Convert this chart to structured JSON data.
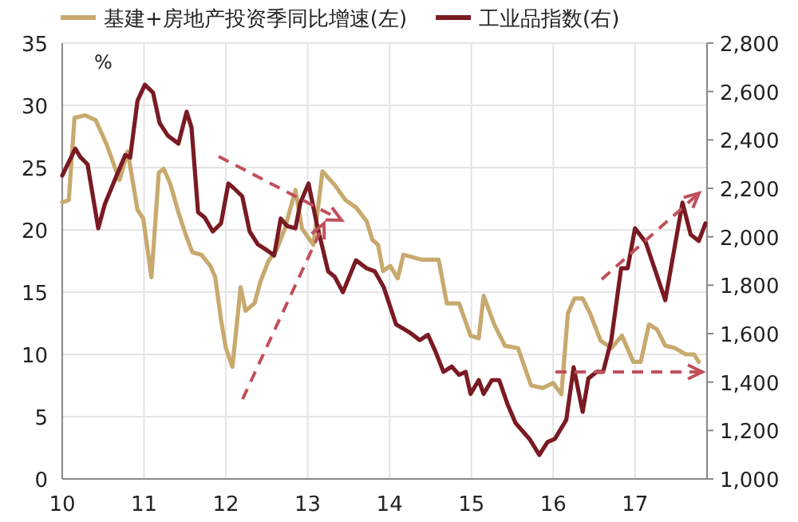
{
  "chart_data": {
    "type": "line",
    "grid": true,
    "legend": "top",
    "line_style": "solid",
    "annotations": [
      "%"
    ],
    "xlim": [
      10,
      17.88
    ],
    "xticks": [
      10,
      11,
      12,
      13,
      14,
      15,
      16,
      17
    ],
    "ylim": [
      0,
      35
    ],
    "yticks": [
      0,
      5,
      10,
      15,
      20,
      25,
      30,
      35
    ],
    "y2lim": [
      1000,
      2800
    ],
    "y2ticks": [
      {
        "value": 1000,
        "label": "1,000"
      },
      {
        "value": 1200,
        "label": "1,200"
      },
      {
        "value": 1400,
        "label": "1,400"
      },
      {
        "value": 1600,
        "label": "1,600"
      },
      {
        "value": 1800,
        "label": "1,800"
      },
      {
        "value": 2000,
        "label": "2,000"
      },
      {
        "value": 2200,
        "label": "2,200"
      },
      {
        "value": 2400,
        "label": "2,400"
      },
      {
        "value": 2600,
        "label": "2,600"
      },
      {
        "value": 2800,
        "label": "2,800"
      }
    ],
    "series": [
      {
        "name": "基建+房地产投资季同比增速(左)",
        "color": "#c8a96e",
        "axis": "y",
        "x": [
          10.0,
          10.08,
          10.15,
          10.28,
          10.41,
          10.54,
          10.7,
          10.8,
          10.92,
          10.99,
          11.09,
          11.18,
          11.24,
          11.32,
          11.42,
          11.51,
          11.59,
          11.7,
          11.81,
          11.87,
          11.94,
          12.0,
          12.08,
          12.18,
          12.24,
          12.35,
          12.42,
          12.52,
          12.62,
          12.72,
          12.85,
          12.93,
          13.07,
          13.18,
          13.33,
          13.46,
          13.59,
          13.72,
          13.79,
          13.86,
          13.92,
          14.01,
          14.1,
          14.17,
          14.4,
          14.6,
          14.7,
          14.85,
          14.99,
          15.09,
          15.15,
          15.28,
          15.41,
          15.57,
          15.73,
          15.87,
          16.0,
          16.1,
          16.18,
          16.26,
          16.36,
          16.45,
          16.58,
          16.71,
          16.84,
          16.98,
          17.07,
          17.17,
          17.27,
          17.37,
          17.49,
          17.62,
          17.72,
          17.78
        ],
        "values": [
          22.2,
          22.4,
          29.0,
          29.2,
          28.8,
          26.9,
          24.0,
          26.3,
          21.6,
          20.9,
          16.2,
          24.6,
          24.9,
          23.7,
          21.4,
          19.6,
          18.2,
          18.0,
          17.1,
          16.2,
          12.8,
          10.5,
          9.0,
          15.4,
          13.5,
          14.1,
          15.8,
          17.5,
          18.4,
          20.1,
          23.2,
          20.1,
          18.8,
          24.7,
          23.6,
          22.4,
          21.8,
          20.7,
          19.2,
          18.8,
          16.7,
          17.1,
          16.1,
          18.0,
          17.6,
          17.6,
          14.1,
          14.1,
          11.5,
          11.3,
          14.7,
          12.4,
          10.7,
          10.5,
          7.5,
          7.3,
          7.7,
          6.8,
          13.3,
          14.5,
          14.5,
          13.3,
          11.1,
          10.5,
          11.5,
          9.4,
          9.4,
          12.4,
          12.0,
          10.7,
          10.5,
          10.0,
          10.0,
          9.4
        ]
      },
      {
        "name": "工业品指数(右)",
        "color": "#7a1a22",
        "axis": "y2",
        "x": [
          10.0,
          10.16,
          10.22,
          10.31,
          10.44,
          10.52,
          10.64,
          10.77,
          10.83,
          10.92,
          11.01,
          11.11,
          11.19,
          11.29,
          11.42,
          11.52,
          11.58,
          11.66,
          11.74,
          11.84,
          11.94,
          12.03,
          12.1,
          12.2,
          12.29,
          12.39,
          12.49,
          12.59,
          12.67,
          12.75,
          12.85,
          12.91,
          13.01,
          13.11,
          13.25,
          13.33,
          13.43,
          13.59,
          13.72,
          13.82,
          13.93,
          14.08,
          14.24,
          14.37,
          14.47,
          14.56,
          14.66,
          14.76,
          14.85,
          14.93,
          14.99,
          15.09,
          15.15,
          15.25,
          15.34,
          15.44,
          15.54,
          15.71,
          15.83,
          15.93,
          16.02,
          16.16,
          16.25,
          16.36,
          16.43,
          16.53,
          16.61,
          16.71,
          16.83,
          16.91,
          17.0,
          17.13,
          17.37,
          17.58,
          17.68,
          17.78,
          17.86
        ],
        "values": [
          2253,
          2364,
          2330,
          2299,
          2035,
          2134,
          2233,
          2338,
          2327,
          2562,
          2628,
          2595,
          2470,
          2418,
          2385,
          2516,
          2451,
          2101,
          2080,
          2022,
          2055,
          2220,
          2200,
          2167,
          2022,
          1969,
          1947,
          1923,
          2075,
          2044,
          2035,
          2141,
          2220,
          2055,
          1857,
          1835,
          1771,
          1903,
          1870,
          1857,
          1791,
          1638,
          1606,
          1573,
          1595,
          1527,
          1442,
          1464,
          1430,
          1442,
          1351,
          1408,
          1351,
          1408,
          1408,
          1310,
          1231,
          1165,
          1099,
          1152,
          1165,
          1244,
          1461,
          1277,
          1415,
          1442,
          1442,
          1573,
          1870,
          1870,
          2035,
          1978,
          1738,
          2141,
          2009,
          1983,
          2055
        ]
      }
    ]
  }
}
